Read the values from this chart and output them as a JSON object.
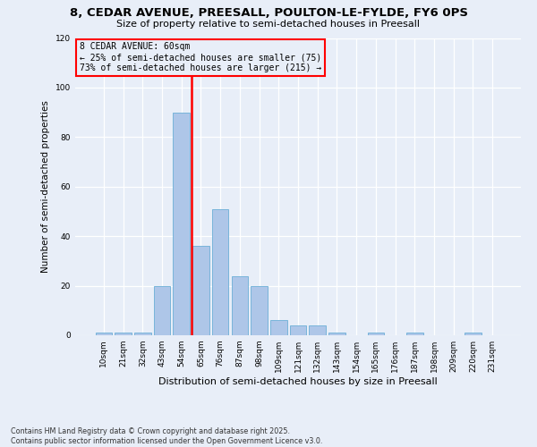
{
  "title_line1": "8, CEDAR AVENUE, PREESALL, POULTON-LE-FYLDE, FY6 0PS",
  "title_line2": "Size of property relative to semi-detached houses in Preesall",
  "xlabel": "Distribution of semi-detached houses by size in Preesall",
  "ylabel": "Number of semi-detached properties",
  "categories": [
    "10sqm",
    "21sqm",
    "32sqm",
    "43sqm",
    "54sqm",
    "65sqm",
    "76sqm",
    "87sqm",
    "98sqm",
    "109sqm",
    "121sqm",
    "132sqm",
    "143sqm",
    "154sqm",
    "165sqm",
    "176sqm",
    "187sqm",
    "198sqm",
    "209sqm",
    "220sqm",
    "231sqm"
  ],
  "values": [
    1,
    1,
    1,
    20,
    90,
    36,
    51,
    24,
    20,
    6,
    4,
    4,
    1,
    0,
    1,
    0,
    1,
    0,
    0,
    1,
    0
  ],
  "bar_color": "#aec6e8",
  "bar_edge_color": "#6baed6",
  "property_size_label": "8 CEDAR AVENUE: 60sqm",
  "pct_smaller": 25,
  "pct_smaller_count": 75,
  "pct_larger": 73,
  "pct_larger_count": 215,
  "vline_x": 4.5,
  "vline_color": "red",
  "ylim": [
    0,
    120
  ],
  "yticks": [
    0,
    20,
    40,
    60,
    80,
    100,
    120
  ],
  "annotation_box_edgecolor": "red",
  "footer_line1": "Contains HM Land Registry data © Crown copyright and database right 2025.",
  "footer_line2": "Contains public sector information licensed under the Open Government Licence v3.0.",
  "background_color": "#e8eef8"
}
